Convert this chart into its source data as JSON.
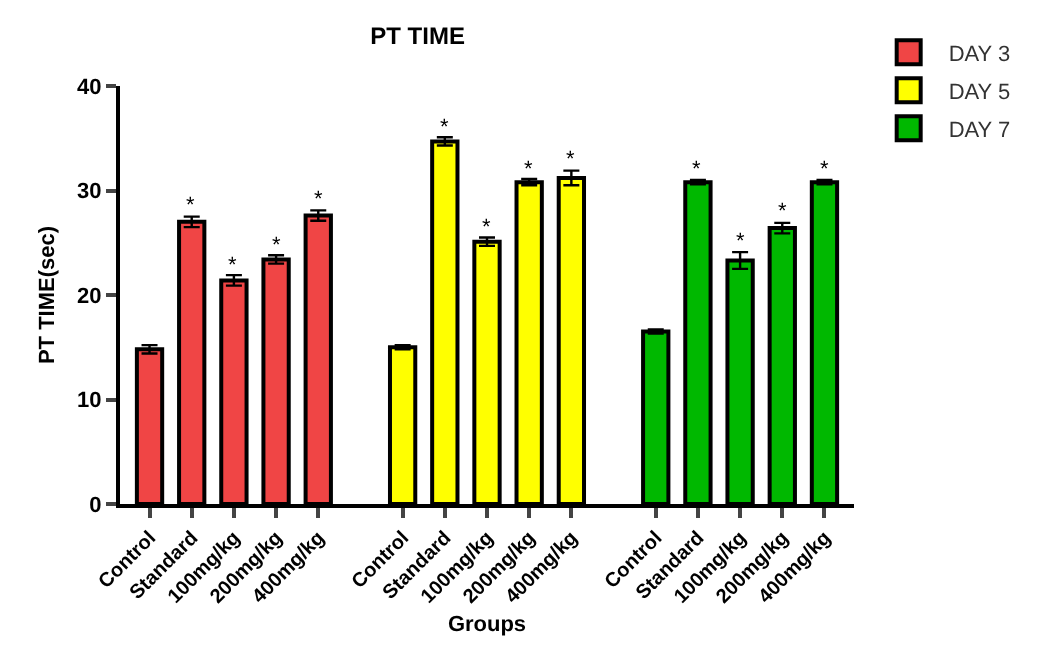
{
  "chart_data": {
    "type": "bar",
    "title": "PT TIME",
    "xlabel": "Groups",
    "ylabel": "PT TIME(sec)",
    "categories": [
      "Control",
      "Standard",
      "100mg/kg",
      "200mg/kg",
      "400mg/kg",
      null,
      "Control",
      "Standard",
      "100mg/kg",
      "200mg/kg",
      "400mg/kg",
      null,
      "Control",
      "Standard",
      "100mg/kg",
      "200mg/kg",
      "400mg/kg"
    ],
    "series": [
      {
        "name": "DAY 3",
        "color": "#f04545",
        "values": [
          14.8,
          27,
          21.4,
          23.4,
          27.6,
          null,
          null,
          null,
          null,
          null,
          null,
          null,
          null,
          null,
          null,
          null,
          null
        ],
        "errors": [
          0.4,
          0.5,
          0.5,
          0.4,
          0.5,
          null,
          null,
          null,
          null,
          null,
          null,
          null,
          null,
          null,
          null,
          null,
          null
        ],
        "value_labels": [
          null,
          "*",
          "*",
          "*",
          "*",
          null,
          null,
          null,
          null,
          null,
          null,
          null,
          null,
          null,
          null,
          null,
          null
        ]
      },
      {
        "name": "DAY 5",
        "color": "#ffff00",
        "values": [
          null,
          null,
          null,
          null,
          null,
          null,
          15,
          34.7,
          25.1,
          30.8,
          31.2,
          null,
          null,
          null,
          null,
          null,
          null
        ],
        "errors": [
          null,
          null,
          null,
          null,
          null,
          null,
          0.2,
          0.4,
          0.4,
          0.3,
          0.7,
          null,
          null,
          null,
          null,
          null,
          null
        ],
        "value_labels": [
          null,
          null,
          null,
          null,
          null,
          null,
          null,
          "*",
          "*",
          "*",
          "*",
          null,
          null,
          null,
          null,
          null,
          null
        ]
      },
      {
        "name": "DAY 7",
        "color": "#00b800",
        "values": [
          null,
          null,
          null,
          null,
          null,
          null,
          null,
          null,
          null,
          null,
          null,
          null,
          16.5,
          30.8,
          23.3,
          26.4,
          30.8
        ],
        "errors": [
          null,
          null,
          null,
          null,
          null,
          null,
          null,
          null,
          null,
          null,
          null,
          null,
          0.2,
          0.2,
          0.8,
          0.5,
          0.2
        ],
        "value_labels": [
          null,
          null,
          null,
          null,
          null,
          null,
          null,
          null,
          null,
          null,
          null,
          null,
          null,
          "*",
          "*",
          "*",
          "*"
        ]
      }
    ],
    "ylim": [
      0,
      40
    ],
    "yticks": [
      0,
      10,
      20,
      30,
      40
    ],
    "grid": false,
    "legend": "top right"
  }
}
